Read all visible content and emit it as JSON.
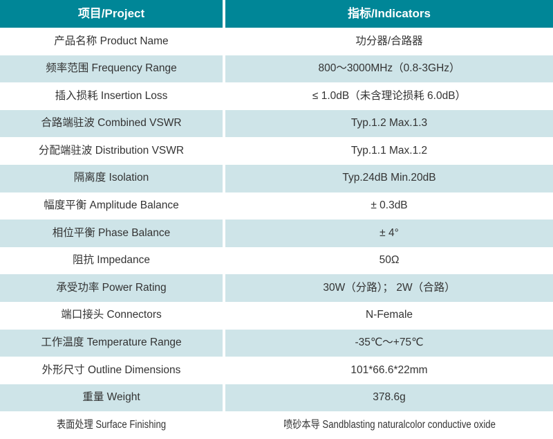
{
  "colors": {
    "header_bg": "#008697",
    "header_text": "#ffffff",
    "row_alt_bg": "#cee4e8",
    "row_bg": "#ffffff",
    "body_text": "#333333"
  },
  "table": {
    "header": {
      "project": "项目/Project",
      "indicators": "指标/Indicators"
    },
    "rows": [
      {
        "project": "产品名称 Product Name",
        "indicator": "功分器/合路器"
      },
      {
        "project": "频率范围 Frequency Range",
        "indicator": "800～3000MHz（0.8-3GHz）"
      },
      {
        "project": "插入损耗 Insertion Loss",
        "indicator": "≤ 1.0dB（未含理论损耗 6.0dB）"
      },
      {
        "project": "合路端驻波 Combined VSWR",
        "indicator": "Typ.1.2 Max.1.3"
      },
      {
        "project": "分配端驻波 Distribution VSWR",
        "indicator": "Typ.1.1 Max.1.2"
      },
      {
        "project": "隔离度 Isolation",
        "indicator": "Typ.24dB Min.20dB"
      },
      {
        "project": "幅度平衡 Amplitude Balance",
        "indicator": "± 0.3dB"
      },
      {
        "project": "相位平衡 Phase Balance",
        "indicator": "± 4°"
      },
      {
        "project": "阻抗 Impedance",
        "indicator": "50Ω"
      },
      {
        "project": "承受功率 Power Rating",
        "indicator": "30W（分路）； 2W（合路）"
      },
      {
        "project": "端口接头 Connectors",
        "indicator": "N-Female"
      },
      {
        "project": "工作温度 Temperature Range",
        "indicator": "-35℃～+75℃"
      },
      {
        "project": "外形尺寸 Outline Dimensions",
        "indicator": "101*66.6*22mm"
      },
      {
        "project": "重量 Weight",
        "indicator": "378.6g"
      },
      {
        "project": "表面处理 Surface Finishing",
        "indicator": "喷砂本导 Sandblasting naturalcolor conductive oxide"
      }
    ]
  }
}
